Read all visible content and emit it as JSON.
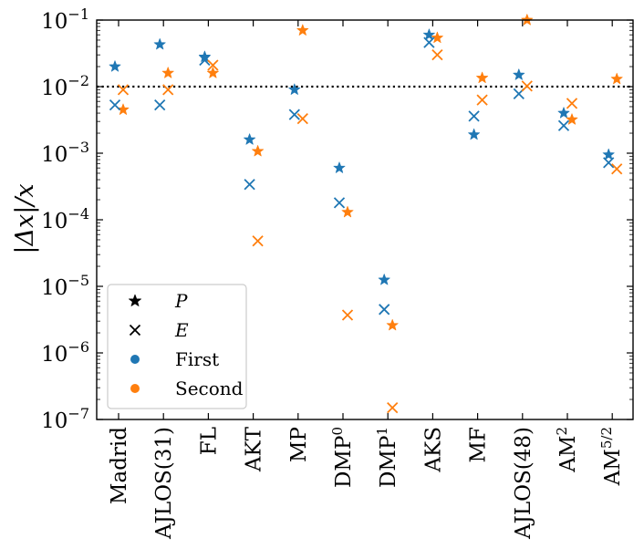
{
  "chart_data": {
    "type": "scatter",
    "title": "",
    "xlabel": "",
    "ylabel": "|Δx|/x",
    "yscale": "log",
    "ylim": [
      1e-07,
      0.1
    ],
    "y_ticks": [
      {
        "value": 1e-07,
        "base": "10",
        "exp": "−7"
      },
      {
        "value": 1e-06,
        "base": "10",
        "exp": "−6"
      },
      {
        "value": 1e-05,
        "base": "10",
        "exp": "−5"
      },
      {
        "value": 0.0001,
        "base": "10",
        "exp": "−4"
      },
      {
        "value": 0.001,
        "base": "10",
        "exp": "−3"
      },
      {
        "value": 0.01,
        "base": "10",
        "exp": "−2"
      },
      {
        "value": 0.1,
        "base": "10",
        "exp": "−1"
      }
    ],
    "reference_line": {
      "value": 0.01,
      "style": "dotted"
    },
    "categories": [
      {
        "base": "Madrid",
        "sup": ""
      },
      {
        "base": "AJLOS(31)",
        "sup": ""
      },
      {
        "base": "FL",
        "sup": ""
      },
      {
        "base": "AKT",
        "sup": ""
      },
      {
        "base": "MP",
        "sup": ""
      },
      {
        "base": "DMP",
        "sup": "0"
      },
      {
        "base": "DMP",
        "sup": "1"
      },
      {
        "base": "AKS",
        "sup": ""
      },
      {
        "base": "MF",
        "sup": ""
      },
      {
        "base": "AJLOS(48)",
        "sup": ""
      },
      {
        "base": "AM",
        "sup": "2"
      },
      {
        "base": "AM",
        "sup": "5/2"
      }
    ],
    "series": [
      {
        "name": "First P",
        "run": "First",
        "quantity": "P",
        "marker": "star",
        "color": "#1f77b4",
        "values": [
          0.02,
          0.043,
          0.028,
          0.0016,
          0.009,
          0.0006,
          1.25e-05,
          0.06,
          0.0019,
          0.015,
          0.004,
          0.00095
        ]
      },
      {
        "name": "Second P",
        "run": "Second",
        "quantity": "P",
        "marker": "star",
        "color": "#ff7f0e",
        "values": [
          0.0045,
          0.016,
          0.016,
          0.00107,
          0.07,
          0.00013,
          2.6e-06,
          0.054,
          0.0135,
          0.1,
          0.0032,
          0.013
        ]
      },
      {
        "name": "First E",
        "run": "First",
        "quantity": "E",
        "marker": "x",
        "color": "#1f77b4",
        "values": [
          0.0053,
          0.0053,
          0.025,
          0.00034,
          0.0038,
          0.00018,
          4.5e-06,
          0.046,
          0.0036,
          0.0078,
          0.0026,
          0.00072
        ]
      },
      {
        "name": "Second E",
        "run": "Second",
        "quantity": "E",
        "marker": "x",
        "color": "#ff7f0e",
        "values": [
          0.009,
          0.009,
          0.021,
          4.8e-05,
          0.0033,
          3.7e-06,
          1.5e-07,
          0.03,
          0.0063,
          0.0102,
          0.0056,
          0.00058
        ]
      }
    ],
    "legend": {
      "position": "lower-left",
      "entries": [
        {
          "label": "P",
          "marker": "star",
          "color": "#000000",
          "math": true
        },
        {
          "label": "E",
          "marker": "x",
          "color": "#000000",
          "math": true
        },
        {
          "label": "First",
          "marker": "dot",
          "color": "#1f77b4",
          "math": false
        },
        {
          "label": "Second",
          "marker": "dot",
          "color": "#ff7f0e",
          "math": false
        }
      ]
    }
  }
}
